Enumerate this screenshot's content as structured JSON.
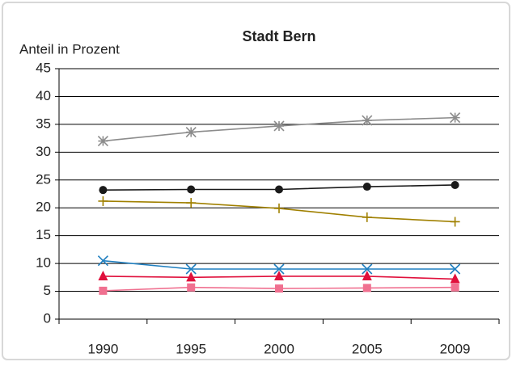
{
  "chart_data": {
    "type": "line",
    "title": "Stadt Bern",
    "y_label": "Anteil in Prozent",
    "categories": [
      "1990",
      "1995",
      "2000",
      "2005",
      "2009"
    ],
    "ylim": [
      0,
      45
    ],
    "yticks": [
      0,
      5,
      10,
      15,
      20,
      25,
      30,
      35,
      40,
      45
    ],
    "grid": true,
    "series": [
      {
        "color": "#8c8c8c",
        "marker": "asterisk",
        "values": [
          32.0,
          33.6,
          34.7,
          35.7,
          36.2
        ]
      },
      {
        "color": "#1a1a1a",
        "marker": "circle",
        "values": [
          23.2,
          23.3,
          23.3,
          23.8,
          24.1
        ]
      },
      {
        "color": "#a08000",
        "marker": "plus",
        "values": [
          21.2,
          20.9,
          19.9,
          18.3,
          17.5
        ]
      },
      {
        "color": "#1f7fc0",
        "marker": "cross",
        "values": [
          10.5,
          9.0,
          9.0,
          9.0,
          9.0
        ]
      },
      {
        "color": "#e0103c",
        "marker": "triangle",
        "values": [
          7.7,
          7.5,
          7.7,
          7.7,
          7.2
        ]
      },
      {
        "color": "#f07090",
        "marker": "square",
        "values": [
          5.1,
          5.7,
          5.5,
          5.6,
          5.7
        ]
      }
    ]
  }
}
